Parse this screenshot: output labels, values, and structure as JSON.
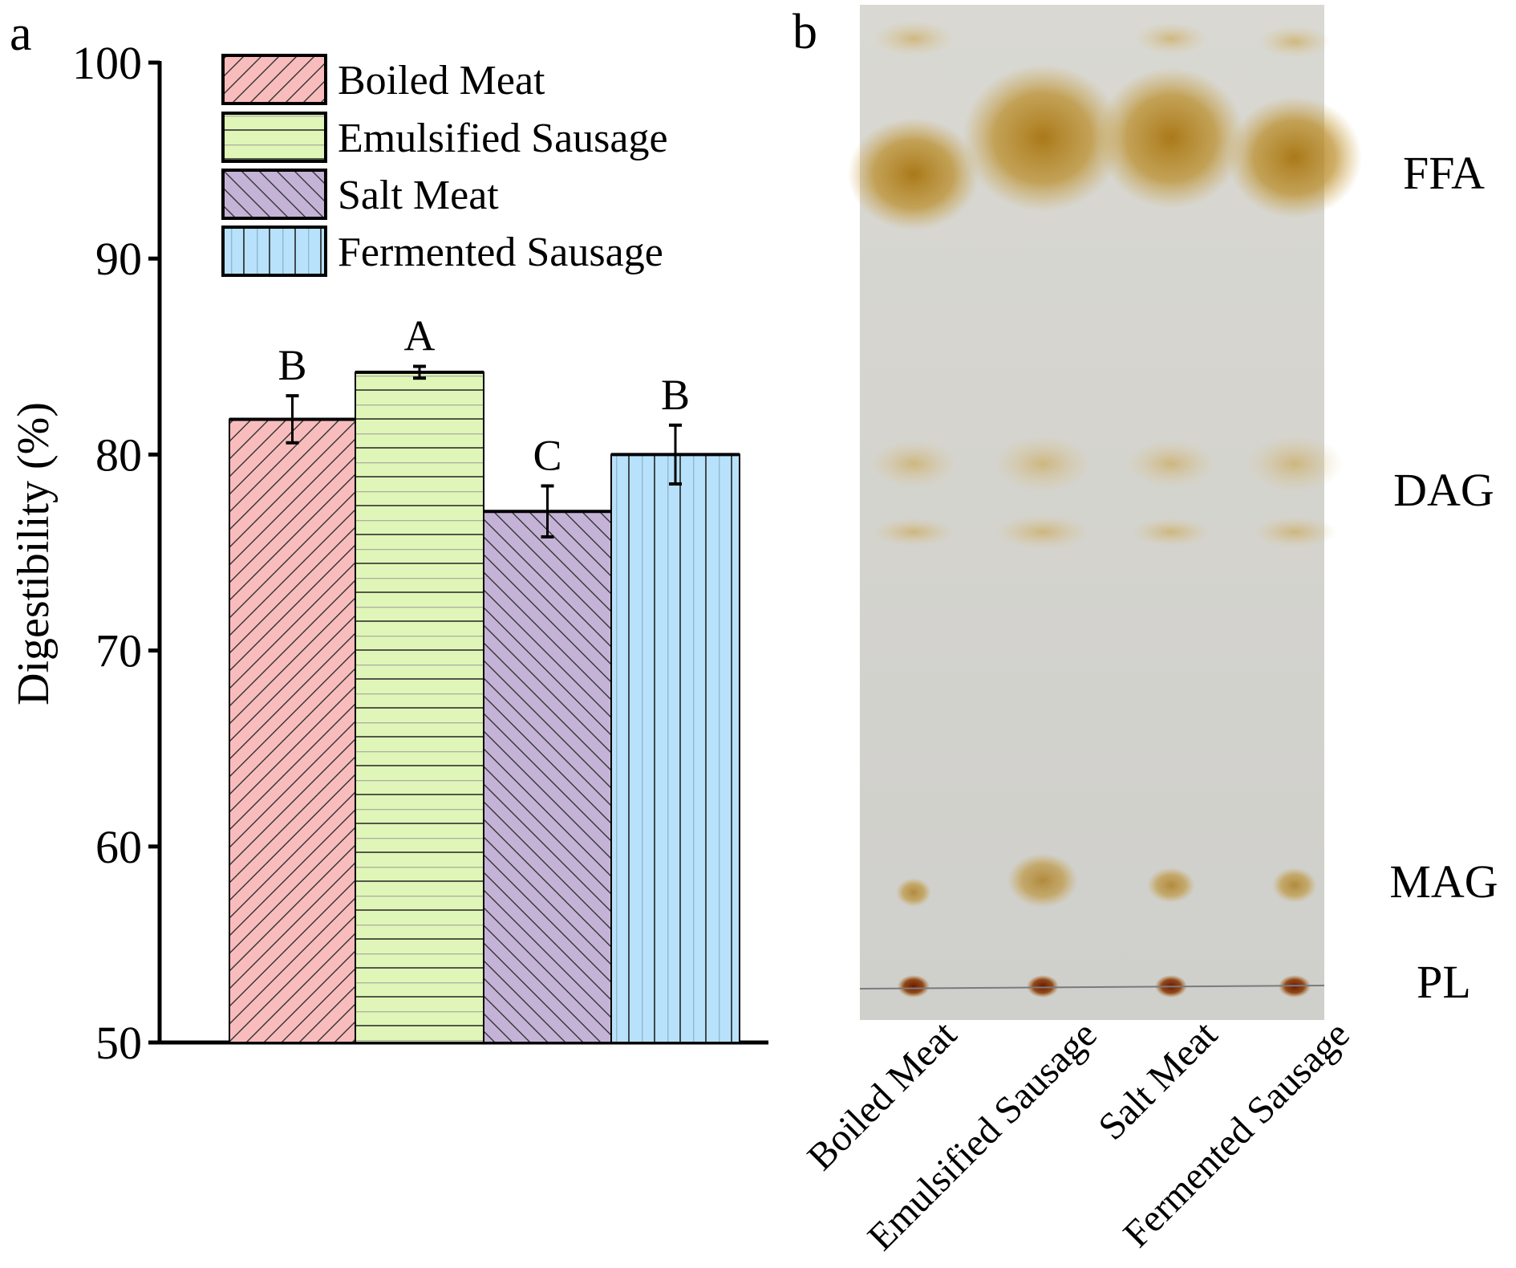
{
  "chart_data": [
    {
      "panel_label": "a",
      "type": "bar",
      "ylabel": "Digestibility (%)",
      "xlabel": "",
      "ylim": [
        50,
        100
      ],
      "yticks": [
        50,
        60,
        70,
        80,
        90,
        100
      ],
      "grid": false,
      "legend_position": "top-center",
      "categories": [
        "Boiled Meat",
        "Emulsified Sausage",
        "Salt Meat",
        "Fermented Sausage"
      ],
      "values": [
        81.8,
        84.2,
        77.1,
        80.0
      ],
      "errors": [
        1.2,
        0.3,
        1.3,
        1.5
      ],
      "significance_letters": [
        "B",
        "A",
        "C",
        "B"
      ],
      "colors": [
        "#f9bcbc",
        "#e0f6b8",
        "#c4b3d6",
        "#b8e2fb"
      ],
      "patterns": [
        "diagonal-forward",
        "horizontal",
        "diagonal-back",
        "vertical"
      ]
    },
    {
      "panel_label": "b",
      "type": "image",
      "lane_labels": [
        "Boiled Meat",
        "Emulsified Sausage",
        "Salt Meat",
        "Fermented Sausage"
      ],
      "band_labels": [
        "FFA",
        "DAG",
        "MAG",
        "PL"
      ]
    }
  ]
}
